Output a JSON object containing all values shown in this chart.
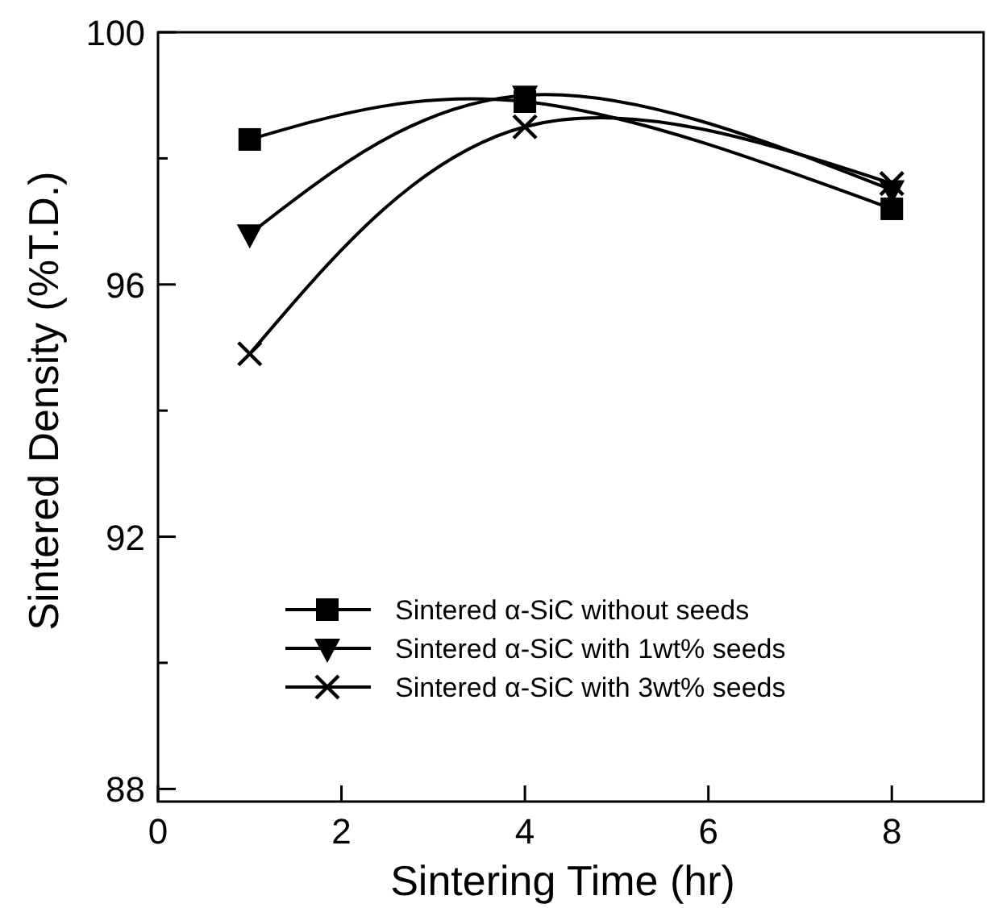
{
  "chart_data": {
    "type": "line",
    "xlabel": "Sintering Time (hr)",
    "ylabel": "Sintered Density (%T.D.)",
    "xlim": [
      0,
      9
    ],
    "xticks": [
      0,
      2,
      4,
      6,
      8
    ],
    "ylim": [
      87.8,
      100
    ],
    "yticks": [
      88,
      {
        "value": 90,
        "label": null
      },
      92,
      {
        "value": 94,
        "label": null
      },
      96,
      {
        "value": 98,
        "label": null
      },
      100
    ],
    "legend": "bottom",
    "grid": false,
    "line_style": "solid",
    "x": [
      1,
      4,
      8
    ],
    "series": [
      {
        "name": "Sintered α-SiC without seeds",
        "color": "#000000",
        "marker": "square",
        "values": [
          98.3,
          98.9,
          97.2
        ]
      },
      {
        "name": "Sintered α-SiC with 1wt% seeds",
        "color": "#000000",
        "marker": "triangle",
        "values": [
          96.8,
          99.0,
          97.5
        ]
      },
      {
        "name": "Sintered α-SiC with 3wt% seeds",
        "color": "#000000",
        "marker": "cross",
        "values": [
          94.9,
          98.5,
          97.6
        ]
      }
    ]
  }
}
